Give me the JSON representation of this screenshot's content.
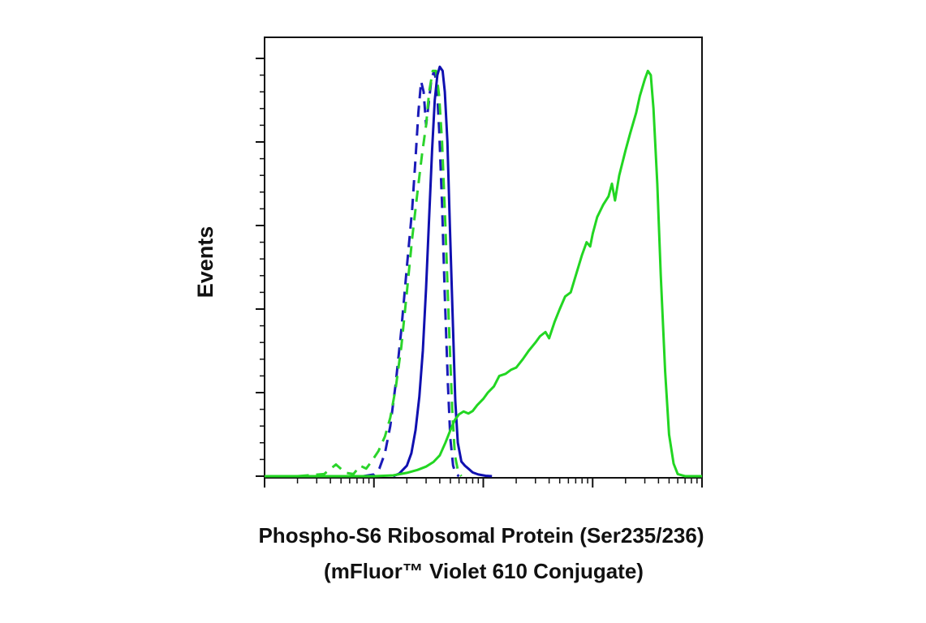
{
  "chart_data": {
    "type": "line",
    "title": "",
    "ylabel": "Events",
    "xlabel_lines": [
      "Phospho-S6 Ribosomal Protein (Ser235/236)",
      "(mFluor™ Violet 610 Conjugate)"
    ],
    "x_scale": "log",
    "xlim": [
      0.1,
      1000
    ],
    "ylim": [
      0,
      100
    ],
    "y_major_ticks": [
      0,
      20,
      40,
      60,
      80,
      100
    ],
    "grid": false,
    "series": [
      {
        "color": "#1a1ab8",
        "dash": "dashed",
        "points": [
          [
            0.8,
            0
          ],
          [
            1.0,
            0.4
          ],
          [
            1.12,
            1.8
          ],
          [
            1.26,
            5.5
          ],
          [
            1.41,
            12
          ],
          [
            1.58,
            22
          ],
          [
            1.78,
            35
          ],
          [
            2.0,
            50
          ],
          [
            2.24,
            64
          ],
          [
            2.4,
            76
          ],
          [
            2.55,
            87
          ],
          [
            2.7,
            94.5
          ],
          [
            2.85,
            92
          ],
          [
            3.0,
            84
          ],
          [
            3.16,
            89
          ],
          [
            3.35,
            95
          ],
          [
            3.55,
            97
          ],
          [
            3.75,
            94
          ],
          [
            3.95,
            83
          ],
          [
            4.2,
            65
          ],
          [
            4.45,
            43
          ],
          [
            4.75,
            22
          ],
          [
            5.0,
            9
          ],
          [
            5.3,
            2.5
          ],
          [
            5.6,
            0.5
          ],
          [
            6.0,
            0
          ]
        ]
      },
      {
        "color": "#2bd42b",
        "dash": "dashed",
        "points": [
          [
            0.2,
            0
          ],
          [
            0.35,
            0.5
          ],
          [
            0.45,
            2.8
          ],
          [
            0.55,
            0.8
          ],
          [
            0.65,
            0.5
          ],
          [
            0.75,
            2.5
          ],
          [
            0.85,
            1.8
          ],
          [
            0.95,
            3.5
          ],
          [
            1.1,
            6
          ],
          [
            1.26,
            9.5
          ],
          [
            1.41,
            14
          ],
          [
            1.58,
            21
          ],
          [
            1.78,
            31
          ],
          [
            2.0,
            44
          ],
          [
            2.24,
            57
          ],
          [
            2.5,
            68
          ],
          [
            2.75,
            77
          ],
          [
            3.0,
            84
          ],
          [
            3.2,
            92
          ],
          [
            3.45,
            97
          ],
          [
            3.7,
            97
          ],
          [
            3.95,
            91
          ],
          [
            4.2,
            80
          ],
          [
            4.5,
            60
          ],
          [
            4.85,
            36
          ],
          [
            5.2,
            16
          ],
          [
            5.5,
            5
          ],
          [
            5.9,
            1
          ],
          [
            6.3,
            0
          ]
        ]
      },
      {
        "color": "#1010b0",
        "dash": "solid",
        "points": [
          [
            1.5,
            0
          ],
          [
            1.7,
            0.6
          ],
          [
            2.0,
            2.5
          ],
          [
            2.2,
            5.5
          ],
          [
            2.4,
            11
          ],
          [
            2.6,
            19
          ],
          [
            2.8,
            30
          ],
          [
            3.0,
            45
          ],
          [
            3.2,
            62
          ],
          [
            3.4,
            78
          ],
          [
            3.6,
            90
          ],
          [
            3.8,
            96
          ],
          [
            4.0,
            98
          ],
          [
            4.25,
            97
          ],
          [
            4.45,
            92
          ],
          [
            4.7,
            80
          ],
          [
            4.95,
            60
          ],
          [
            5.25,
            38
          ],
          [
            5.55,
            18
          ],
          [
            5.85,
            8
          ],
          [
            6.3,
            3.5
          ],
          [
            6.8,
            2.5
          ],
          [
            7.3,
            1.8
          ],
          [
            8.0,
            0.9
          ],
          [
            9.0,
            0.4
          ],
          [
            10.5,
            0.1
          ],
          [
            12,
            0
          ]
        ]
      },
      {
        "color": "#22d622",
        "dash": "solid",
        "points": [
          [
            0.1,
            0
          ],
          [
            0.3,
            0
          ],
          [
            0.6,
            0
          ],
          [
            1.0,
            0
          ],
          [
            1.5,
            0.2
          ],
          [
            2.0,
            0.8
          ],
          [
            2.5,
            1.5
          ],
          [
            3.0,
            2.3
          ],
          [
            3.5,
            3.4
          ],
          [
            4.0,
            5
          ],
          [
            4.5,
            8
          ],
          [
            5.0,
            11
          ],
          [
            5.5,
            13.5
          ],
          [
            6.0,
            14.8
          ],
          [
            6.6,
            15.5
          ],
          [
            7.3,
            15
          ],
          [
            8.0,
            15.6
          ],
          [
            8.8,
            17
          ],
          [
            10,
            18.5
          ],
          [
            11,
            20
          ],
          [
            12.5,
            21.5
          ],
          [
            14,
            24
          ],
          [
            16,
            24.5
          ],
          [
            18,
            25.5
          ],
          [
            20,
            26
          ],
          [
            23,
            28
          ],
          [
            26,
            30
          ],
          [
            30,
            32
          ],
          [
            33,
            33.5
          ],
          [
            37,
            34.5
          ],
          [
            40,
            33
          ],
          [
            45,
            37
          ],
          [
            50,
            40
          ],
          [
            56,
            43
          ],
          [
            63,
            44
          ],
          [
            70,
            48
          ],
          [
            80,
            53
          ],
          [
            88,
            56
          ],
          [
            95,
            55
          ],
          [
            100,
            58
          ],
          [
            110,
            62
          ],
          [
            125,
            65
          ],
          [
            140,
            67
          ],
          [
            150,
            70
          ],
          [
            160,
            66
          ],
          [
            175,
            72
          ],
          [
            200,
            78
          ],
          [
            220,
            82
          ],
          [
            250,
            87
          ],
          [
            270,
            91
          ],
          [
            300,
            95
          ],
          [
            320,
            97
          ],
          [
            340,
            96
          ],
          [
            360,
            88
          ],
          [
            390,
            70
          ],
          [
            420,
            48
          ],
          [
            460,
            25
          ],
          [
            500,
            10
          ],
          [
            550,
            3
          ],
          [
            600,
            0.5
          ],
          [
            700,
            0
          ],
          [
            1000,
            0
          ]
        ]
      }
    ]
  }
}
